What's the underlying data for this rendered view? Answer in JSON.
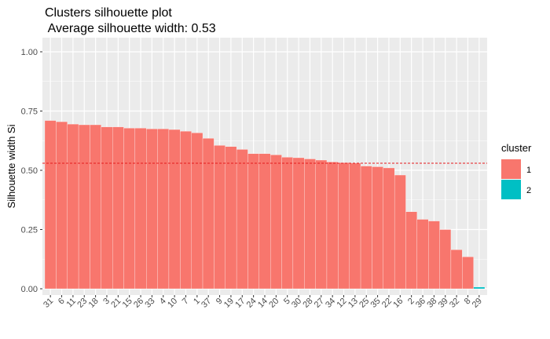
{
  "chart_data": {
    "type": "bar",
    "title": "Clusters silhouette plot",
    "subtitle": " Average silhouette width: 0.53",
    "xlabel": "",
    "ylabel": "Silhouette width Si",
    "ylim": [
      0,
      1
    ],
    "yticks": [
      "0.00",
      "0.25",
      "0.50",
      "0.75",
      "1.00"
    ],
    "grid": true,
    "legend_placement": "right",
    "average_line": {
      "value": 0.53,
      "color": "#e41a1c"
    },
    "categories": [
      "31",
      "6",
      "11",
      "23",
      "18",
      "3",
      "21",
      "15",
      "26",
      "33",
      "4",
      "10",
      "7",
      "1",
      "37",
      "9",
      "19",
      "17",
      "24",
      "14",
      "20",
      "5",
      "30",
      "28",
      "27",
      "34",
      "12",
      "13",
      "25",
      "35",
      "22",
      "16",
      "2",
      "36",
      "38",
      "39",
      "32",
      "8",
      "29"
    ],
    "values": [
      0.71,
      0.705,
      0.695,
      0.692,
      0.692,
      0.683,
      0.683,
      0.678,
      0.678,
      0.675,
      0.675,
      0.672,
      0.665,
      0.658,
      0.635,
      0.605,
      0.6,
      0.588,
      0.57,
      0.57,
      0.565,
      0.555,
      0.553,
      0.548,
      0.543,
      0.535,
      0.532,
      0.53,
      0.518,
      0.515,
      0.51,
      0.48,
      0.325,
      0.293,
      0.286,
      0.25,
      0.165,
      0.135,
      0.007
    ],
    "clusters": [
      1,
      1,
      1,
      1,
      1,
      1,
      1,
      1,
      1,
      1,
      1,
      1,
      1,
      1,
      1,
      1,
      1,
      1,
      1,
      1,
      1,
      1,
      1,
      1,
      1,
      1,
      1,
      1,
      1,
      1,
      1,
      1,
      1,
      1,
      1,
      1,
      1,
      1,
      2
    ],
    "legend": {
      "title": "cluster",
      "entries": [
        {
          "label": "1",
          "color": "#f8766d"
        },
        {
          "label": "2",
          "color": "#00bfc4"
        }
      ]
    }
  }
}
